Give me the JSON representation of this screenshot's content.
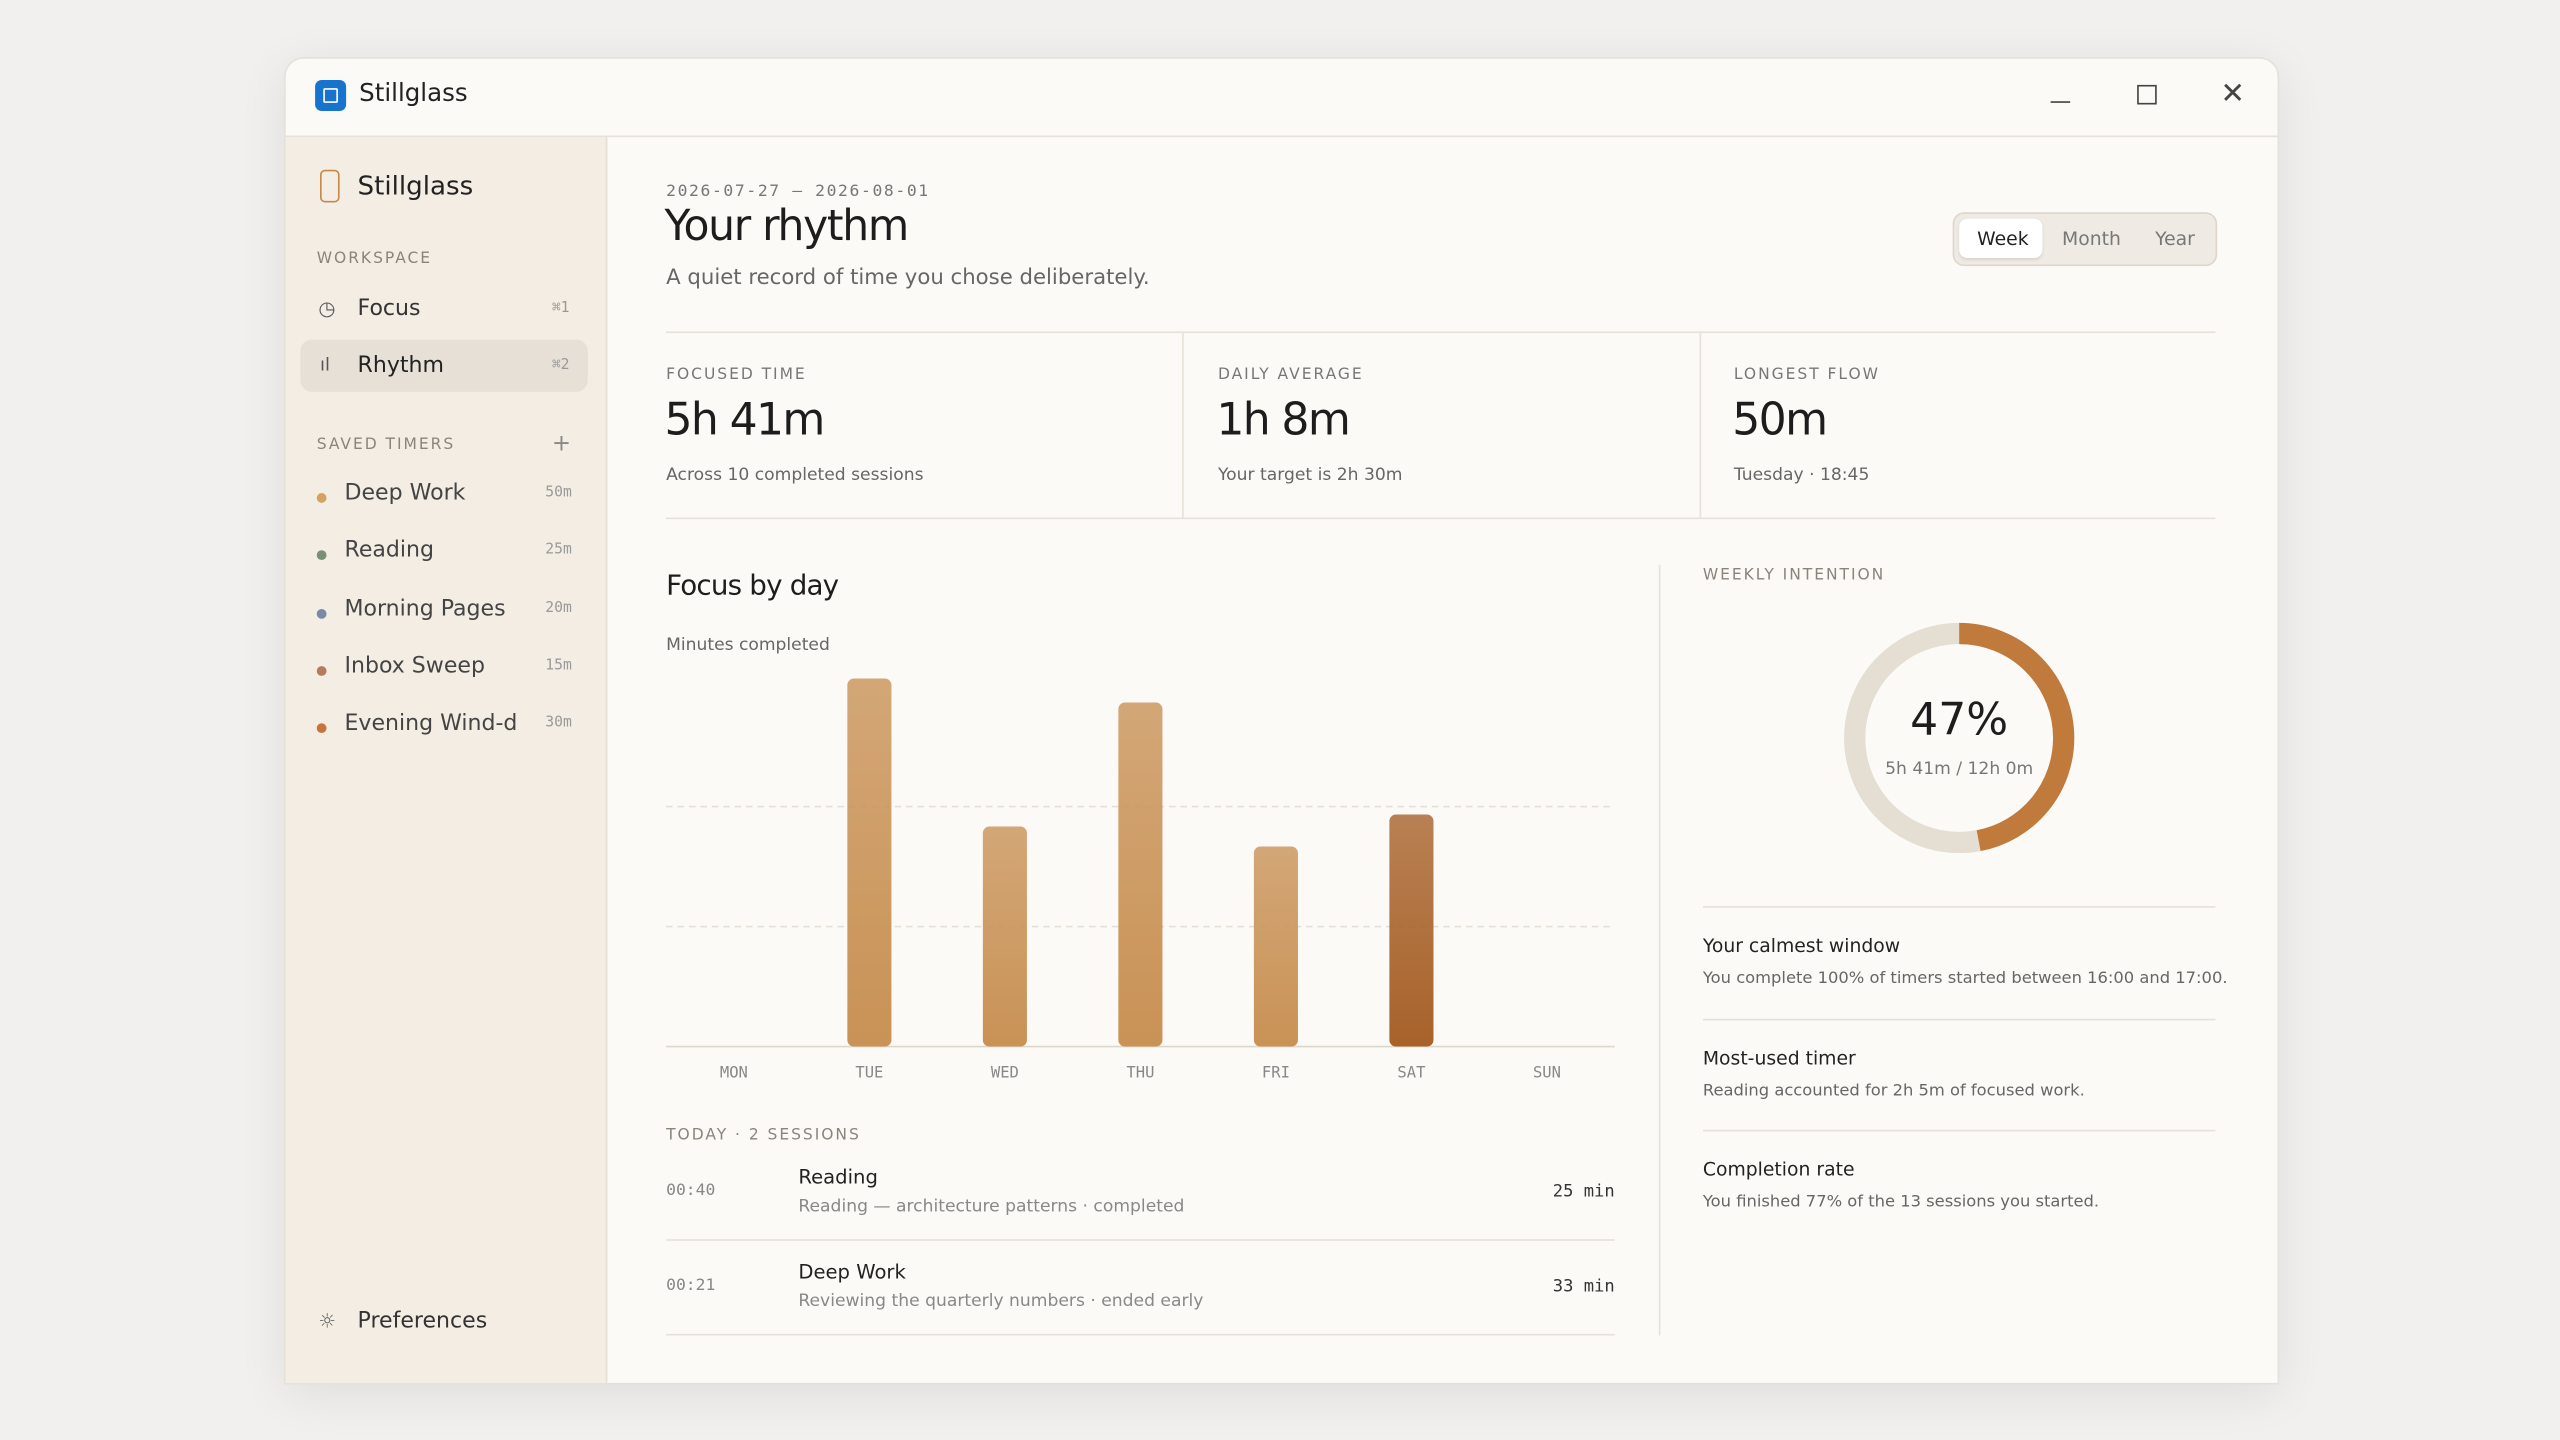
{
  "window": {
    "title": "Stillglass"
  },
  "sidebar": {
    "app_name": "Stillglass",
    "workspace": {
      "label": "WORKSPACE",
      "items": [
        {
          "label": "Focus",
          "shortcut": "⌘1"
        },
        {
          "label": "Rhythm",
          "shortcut": "⌘2"
        }
      ]
    },
    "saved_timers": {
      "label": "SAVED TIMERS",
      "items": [
        {
          "name": "Deep Work",
          "duration": "50m",
          "color": "#d4a35f"
        },
        {
          "name": "Reading",
          "duration": "25m",
          "color": "#7b8f74"
        },
        {
          "name": "Morning Pages",
          "duration": "20m",
          "color": "#7a8aa6"
        },
        {
          "name": "Inbox Sweep",
          "duration": "15m",
          "color": "#b67a5c"
        },
        {
          "name": "Evening Wind-d",
          "duration": "30m",
          "color": "#c8733a"
        }
      ]
    },
    "preferences": "Preferences"
  },
  "header": {
    "date_range": "2026-07-27 — 2026-08-01",
    "title": "Your rhythm",
    "subtitle": "A quiet record of time you chose deliberately.",
    "periods": [
      "Week",
      "Month",
      "Year"
    ]
  },
  "stats": [
    {
      "label": "FOCUSED TIME",
      "value": "5h 41m",
      "note": "Across 10 completed sessions"
    },
    {
      "label": "DAILY AVERAGE",
      "value": "1h 8m",
      "note": "Your target is 2h 30m"
    },
    {
      "label": "LONGEST FLOW",
      "value": "50m",
      "note": "Tuesday · 18:45"
    }
  ],
  "chart_data": {
    "type": "bar",
    "title": "Focus by day",
    "y_label": "Minutes completed",
    "categories": [
      "MON",
      "TUE",
      "WED",
      "THU",
      "FRI",
      "SAT",
      "SUN"
    ],
    "values": [
      0,
      92,
      55,
      86,
      50,
      58,
      0
    ],
    "colors": [
      "#c99256",
      "#c99256",
      "#c99256",
      "#c99256",
      "#c99256",
      "#a8622a",
      "#c99256"
    ],
    "ylim": [
      0,
      100
    ],
    "gridlines": [
      30,
      60
    ]
  },
  "sessions": {
    "label": "TODAY · 2 SESSIONS",
    "items": [
      {
        "time": "00:40",
        "name": "Reading",
        "detail": "Reading — architecture patterns · completed",
        "duration": "25 min"
      },
      {
        "time": "00:21",
        "name": "Deep Work",
        "detail": "Reviewing the quarterly numbers · ended early",
        "duration": "33 min"
      }
    ]
  },
  "intention": {
    "label": "WEEKLY INTENTION",
    "value": 47,
    "value_label": "47%",
    "detail": "5h 41m / 12h 0m",
    "color": "#c07a3b"
  },
  "insights": [
    {
      "title": "Your calmest window",
      "text": "You complete 100% of timers started between 16:00 and 17:00."
    },
    {
      "title": "Most-used timer",
      "text": "Reading accounted for 2h 5m of focused work."
    },
    {
      "title": "Completion rate",
      "text": "You finished 77% of the 13 sessions you started."
    }
  ]
}
